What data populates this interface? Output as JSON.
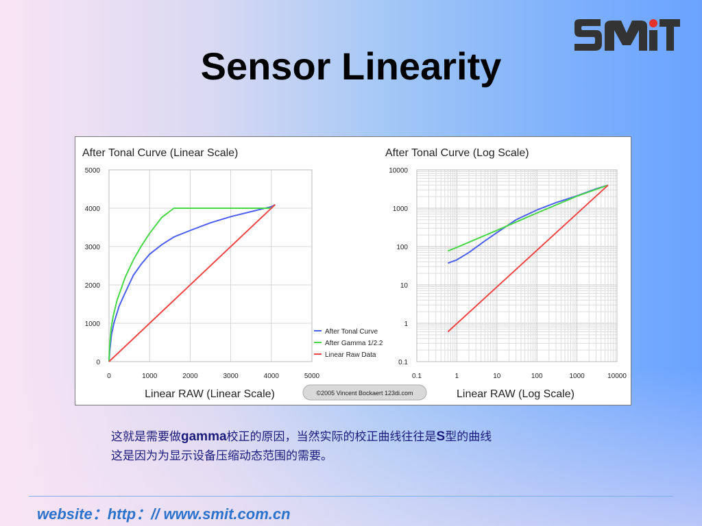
{
  "slide": {
    "title": "Sensor Linearity",
    "logo_text": "SMiT",
    "caption_line1": [
      "这就是需要做",
      "gamma",
      "校正的原因，当然实际的校正曲线往往是",
      "S",
      "型的曲线"
    ],
    "caption_line2": "这是因为为显示设备压缩动态范围的需要。",
    "footer": "website：http：// www.smit.com.cn",
    "copyright": "©2005 Vincent Bockaert 123di.com"
  },
  "chart_data": [
    {
      "type": "line",
      "title": "After Tonal Curve (Linear Scale)",
      "xlabel": "Linear RAW (Linear Scale)",
      "ylabel": "",
      "xlim": [
        0,
        5000
      ],
      "ylim": [
        0,
        5000
      ],
      "xticks": [
        0,
        1000,
        2000,
        3000,
        4000,
        5000
      ],
      "yticks": [
        0,
        1000,
        2000,
        3000,
        4000,
        5000
      ],
      "grid": true,
      "legend": "bottom-right",
      "series": [
        {
          "name": "After Tonal Curve",
          "color": "#4a5ef0",
          "x": [
            0,
            20,
            60,
            120,
            250,
            400,
            600,
            800,
            1000,
            1300,
            1600,
            2000,
            2500,
            3000,
            3500,
            4000,
            4095
          ],
          "y": [
            0,
            300,
            700,
            1000,
            1450,
            1800,
            2250,
            2550,
            2800,
            3050,
            3250,
            3420,
            3620,
            3780,
            3910,
            4040,
            4095
          ]
        },
        {
          "name": "After Gamma 1/2.2",
          "color": "#46d646",
          "x": [
            0,
            10,
            50,
            100,
            200,
            400,
            600,
            800,
            1000,
            1300,
            1600,
            2000,
            2500,
            3000,
            3500,
            4000,
            4095
          ],
          "y": [
            0,
            344,
            851,
            1168,
            1604,
            2201,
            2651,
            3021,
            3342,
            3760,
            4000,
            4000,
            4000,
            4000,
            4000,
            4000,
            4095
          ]
        },
        {
          "name": "Linear Raw Data",
          "color": "#ef4444",
          "x": [
            0,
            4095
          ],
          "y": [
            0,
            4095
          ]
        }
      ]
    },
    {
      "type": "line",
      "title": "After Tonal Curve (Log Scale)",
      "xlabel": "Linear RAW (Log Scale)",
      "ylabel": "",
      "scale": "log",
      "xlim": [
        0.1,
        10000
      ],
      "ylim": [
        0.1,
        10000
      ],
      "xticks": [
        0.1,
        1,
        10,
        100,
        1000,
        10000
      ],
      "yticks": [
        0.1,
        1,
        10,
        100,
        1000,
        10000
      ],
      "xtick_labels": [
        "0.1",
        "1",
        "10",
        "100",
        "1000",
        "10000"
      ],
      "ytick_labels": [
        "0.1",
        "1",
        "10",
        "100",
        "1000",
        "10000"
      ],
      "grid": true,
      "series": [
        {
          "name": "After Tonal Curve",
          "color": "#4a5ef0",
          "x": [
            0.6,
            1,
            2,
            5,
            10,
            30,
            100,
            300,
            1000,
            3000,
            6000
          ],
          "y": [
            37,
            45,
            70,
            140,
            230,
            500,
            900,
            1400,
            2100,
            3200,
            4000
          ]
        },
        {
          "name": "After Gamma 1/2.2",
          "color": "#46d646",
          "x": [
            0.6,
            1,
            10,
            100,
            1000,
            6000
          ],
          "y": [
            77,
            95,
            265,
            750,
            2060,
            4000
          ]
        },
        {
          "name": "Linear Raw Data",
          "color": "#ef4444",
          "x": [
            0.6,
            6000
          ],
          "y": [
            0.6,
            4000
          ]
        }
      ]
    }
  ]
}
